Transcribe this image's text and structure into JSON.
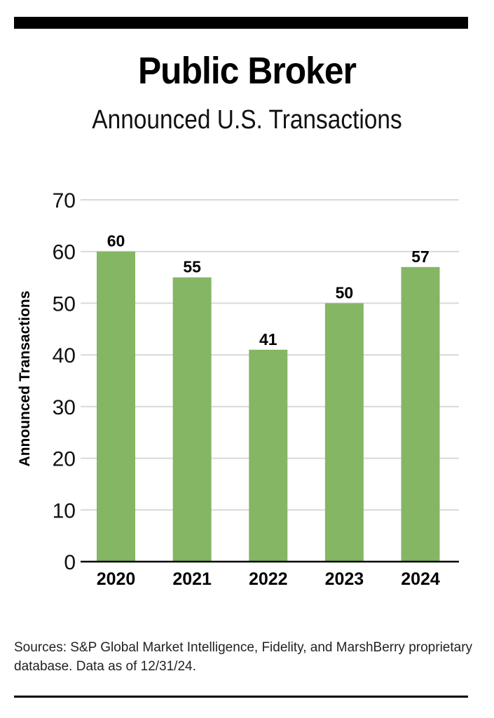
{
  "header": {
    "title": "Public Broker",
    "subtitle": "Announced U.S. Transactions"
  },
  "footer": {
    "sources": "Sources: S&P Global Market Intelligence, Fidelity, and MarshBerry proprietary database. Data as of 12/31/24."
  },
  "colors": {
    "bar": "#84b664",
    "grid": "#d9d9d9",
    "axis": "#000000"
  },
  "chart_data": {
    "type": "bar",
    "title": "Public Broker",
    "subtitle": "Announced U.S. Transactions",
    "xlabel": "",
    "ylabel": "Announced Transactions",
    "categories": [
      "2020",
      "2021",
      "2022",
      "2023",
      "2024"
    ],
    "values": [
      60,
      55,
      41,
      50,
      57
    ],
    "data_labels": [
      "60",
      "55",
      "41",
      "50",
      "57"
    ],
    "ylim": [
      0,
      70
    ],
    "yticks": [
      0,
      10,
      20,
      30,
      40,
      50,
      60,
      70
    ],
    "ytick_labels": [
      "0",
      "10",
      "20",
      "30",
      "40",
      "50",
      "60",
      "70"
    ],
    "grid": true,
    "legend": "none"
  }
}
